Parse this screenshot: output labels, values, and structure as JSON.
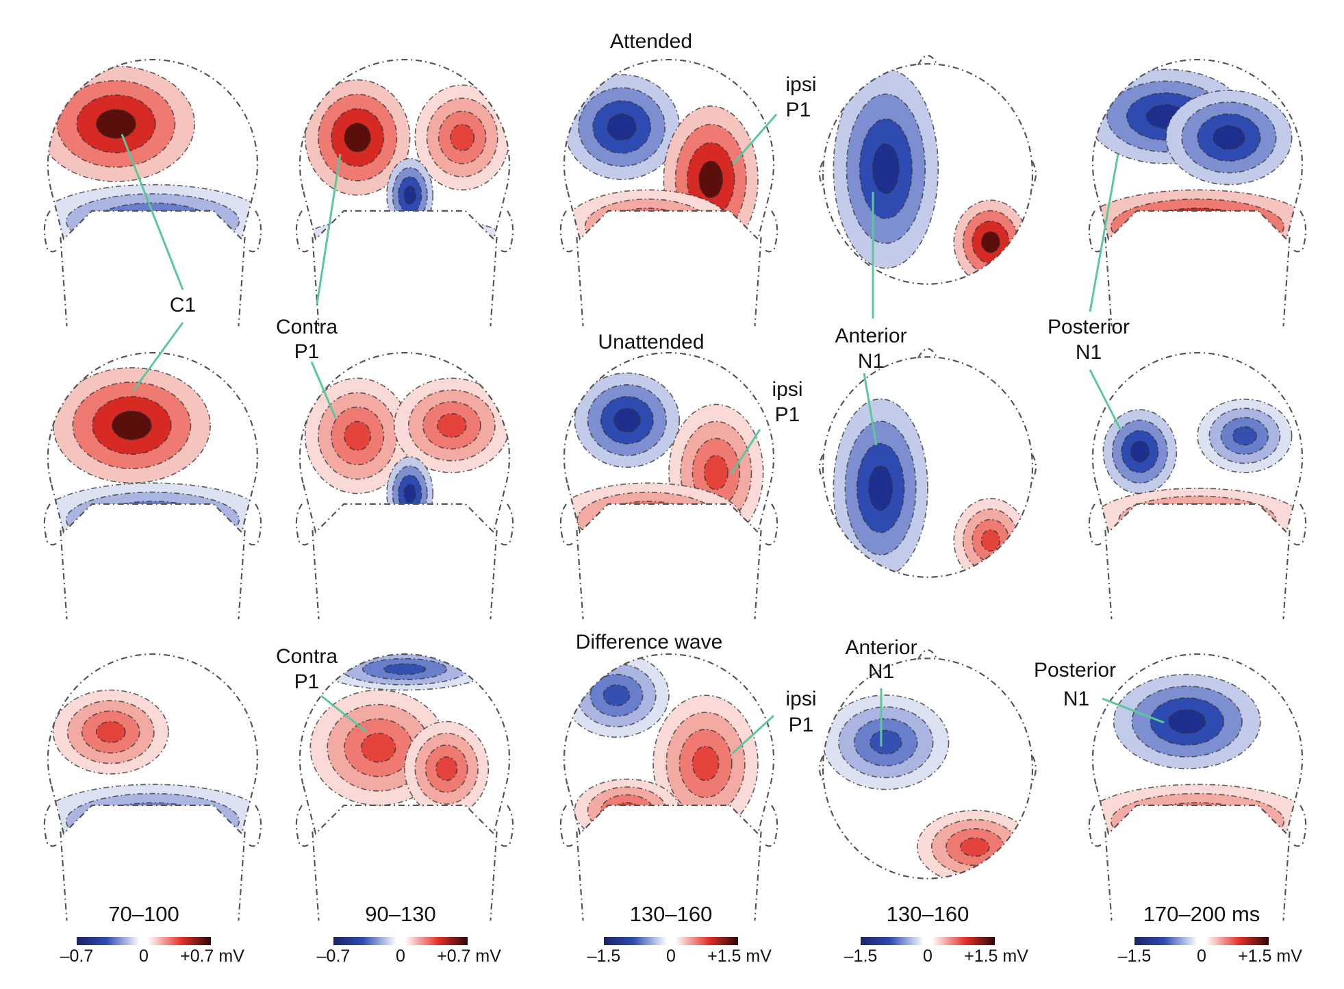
{
  "figure": {
    "rows": [
      {
        "id": "attended",
        "title": "Attended",
        "maps": [
          {
            "col": 0,
            "shape": "posterior",
            "pattern": "C1-attended",
            "callout": "C1"
          },
          {
            "col": 1,
            "shape": "posterior",
            "pattern": "P1-contra-attended",
            "callout": "Contra P1"
          },
          {
            "col": 2,
            "shape": "posterior",
            "pattern": "P1-ipsi-attended",
            "callout": "ipsi P1"
          },
          {
            "col": 3,
            "shape": "top",
            "pattern": "N1-anterior-attended",
            "callout": "Anterior N1"
          },
          {
            "col": 4,
            "shape": "posterior",
            "pattern": "N1-posterior-attended",
            "callout": "Posterior N1"
          }
        ]
      },
      {
        "id": "unattended",
        "title": "Unattended",
        "maps": [
          {
            "col": 0,
            "shape": "posterior",
            "pattern": "C1-unattended",
            "callout": "C1"
          },
          {
            "col": 1,
            "shape": "posterior",
            "pattern": "P1-contra-unattended",
            "callout": "Contra P1"
          },
          {
            "col": 2,
            "shape": "posterior",
            "pattern": "P1-ipsi-unattended",
            "callout": "ipsi P1"
          },
          {
            "col": 3,
            "shape": "top",
            "pattern": "N1-anterior-unattended",
            "callout": "Anterior N1"
          },
          {
            "col": 4,
            "shape": "posterior",
            "pattern": "N1-posterior-unattended",
            "callout": "Posterior N1"
          }
        ]
      },
      {
        "id": "difference",
        "title": "Difference wave",
        "maps": [
          {
            "col": 0,
            "shape": "posterior",
            "pattern": "C1-difference",
            "callout": ""
          },
          {
            "col": 1,
            "shape": "posterior",
            "pattern": "P1-contra-difference",
            "callout": "Contra P1"
          },
          {
            "col": 2,
            "shape": "posterior",
            "pattern": "P1-ipsi-difference",
            "callout": "ipsi P1"
          },
          {
            "col": 3,
            "shape": "top",
            "pattern": "N1-anterior-difference",
            "callout": "Anterior N1"
          },
          {
            "col": 4,
            "shape": "posterior",
            "pattern": "N1-posterior-difference",
            "callout": "Posterior N1"
          }
        ]
      }
    ],
    "callouts": {
      "c1": "C1",
      "contra_p1_line1": "Contra",
      "contra_p1_line2": "P1",
      "ipsi_p1_line1": "ipsi",
      "ipsi_p1_line2": "P1",
      "anterior_n1_line1": "Anterior",
      "anterior_n1_line2": "N1",
      "posterior_n1_line1": "Posterior",
      "posterior_n1_line2": "N1"
    },
    "time_windows": [
      "70–100",
      "90–130",
      "130–160",
      "130–160",
      "170–200 ms"
    ],
    "colorbars": [
      {
        "min": "–0.7",
        "zero": "0",
        "max": "+0.7 mV",
        "range_mv": [
          -0.7,
          0.7
        ]
      },
      {
        "min": "–0.7",
        "zero": "0",
        "max": "+0.7 mV",
        "range_mv": [
          -0.7,
          0.7
        ]
      },
      {
        "min": "–1.5",
        "zero": "0",
        "max": "+1.5 mV",
        "range_mv": [
          -1.5,
          1.5
        ]
      },
      {
        "min": "–1.5",
        "zero": "0",
        "max": "+1.5 mV",
        "range_mv": [
          -1.5,
          1.5
        ]
      },
      {
        "min": "–1.5",
        "zero": "0",
        "max": "+1.5 mV",
        "range_mv": [
          -1.5,
          1.5
        ]
      }
    ],
    "colors": {
      "negative_extreme": "#1c2463",
      "negative": "#2d4bb0",
      "neutral": "#ffffff",
      "positive": "#e5312b",
      "positive_extreme": "#2a0808",
      "leader_line": "#5cc79a"
    }
  }
}
